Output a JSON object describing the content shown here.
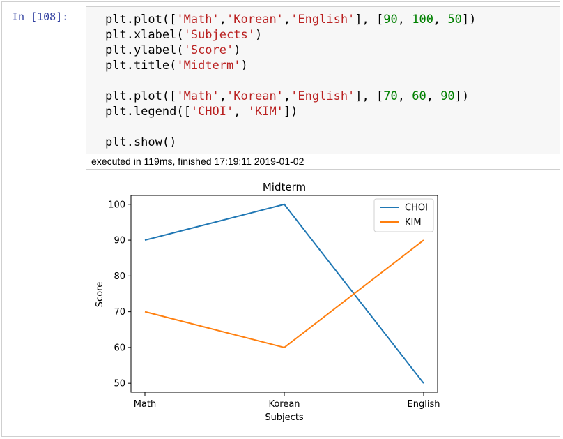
{
  "cell": {
    "prompt": "In [108]:",
    "code_lines": [
      [
        {
          "t": "plt.plot(["
        },
        {
          "t": "'Math'",
          "c": "s"
        },
        {
          "t": ","
        },
        {
          "t": "'Korean'",
          "c": "s"
        },
        {
          "t": ","
        },
        {
          "t": "'English'",
          "c": "s"
        },
        {
          "t": "], ["
        },
        {
          "t": "90",
          "c": "n"
        },
        {
          "t": ", "
        },
        {
          "t": "100",
          "c": "n"
        },
        {
          "t": ", "
        },
        {
          "t": "50",
          "c": "n"
        },
        {
          "t": "])"
        }
      ],
      [
        {
          "t": "plt.xlabel("
        },
        {
          "t": "'Subjects'",
          "c": "s"
        },
        {
          "t": ")"
        }
      ],
      [
        {
          "t": "plt.ylabel("
        },
        {
          "t": "'Score'",
          "c": "s"
        },
        {
          "t": ")"
        }
      ],
      [
        {
          "t": "plt.title("
        },
        {
          "t": "'Midterm'",
          "c": "s"
        },
        {
          "t": ")"
        }
      ],
      [],
      [
        {
          "t": "plt.plot(["
        },
        {
          "t": "'Math'",
          "c": "s"
        },
        {
          "t": ","
        },
        {
          "t": "'Korean'",
          "c": "s"
        },
        {
          "t": ","
        },
        {
          "t": "'English'",
          "c": "s"
        },
        {
          "t": "], ["
        },
        {
          "t": "70",
          "c": "n"
        },
        {
          "t": ", "
        },
        {
          "t": "60",
          "c": "n"
        },
        {
          "t": ", "
        },
        {
          "t": "90",
          "c": "n"
        },
        {
          "t": "])"
        }
      ],
      [
        {
          "t": "plt.legend(["
        },
        {
          "t": "'CHOI'",
          "c": "s"
        },
        {
          "t": ", "
        },
        {
          "t": "'KIM'",
          "c": "s"
        },
        {
          "t": "])"
        }
      ],
      [],
      [
        {
          "t": "plt.show()"
        }
      ]
    ],
    "execution_info": "executed in 119ms, finished 17:19:11 2019-01-02"
  },
  "colors": {
    "series1": "#1f77b4",
    "series2": "#ff7f0e",
    "prompt": "#303f9f",
    "string": "#ba2121",
    "number": "#008000"
  },
  "chart_data": {
    "type": "line",
    "title": "Midterm",
    "xlabel": "Subjects",
    "ylabel": "Score",
    "categories": [
      "Math",
      "Korean",
      "English"
    ],
    "series": [
      {
        "name": "CHOI",
        "values": [
          90,
          100,
          50
        ]
      },
      {
        "name": "KIM",
        "values": [
          70,
          60,
          90
        ]
      }
    ],
    "ylim": [
      47.5,
      102.5
    ],
    "yticks": [
      50,
      60,
      70,
      80,
      90,
      100
    ],
    "grid": false,
    "legend_position": "upper right"
  }
}
